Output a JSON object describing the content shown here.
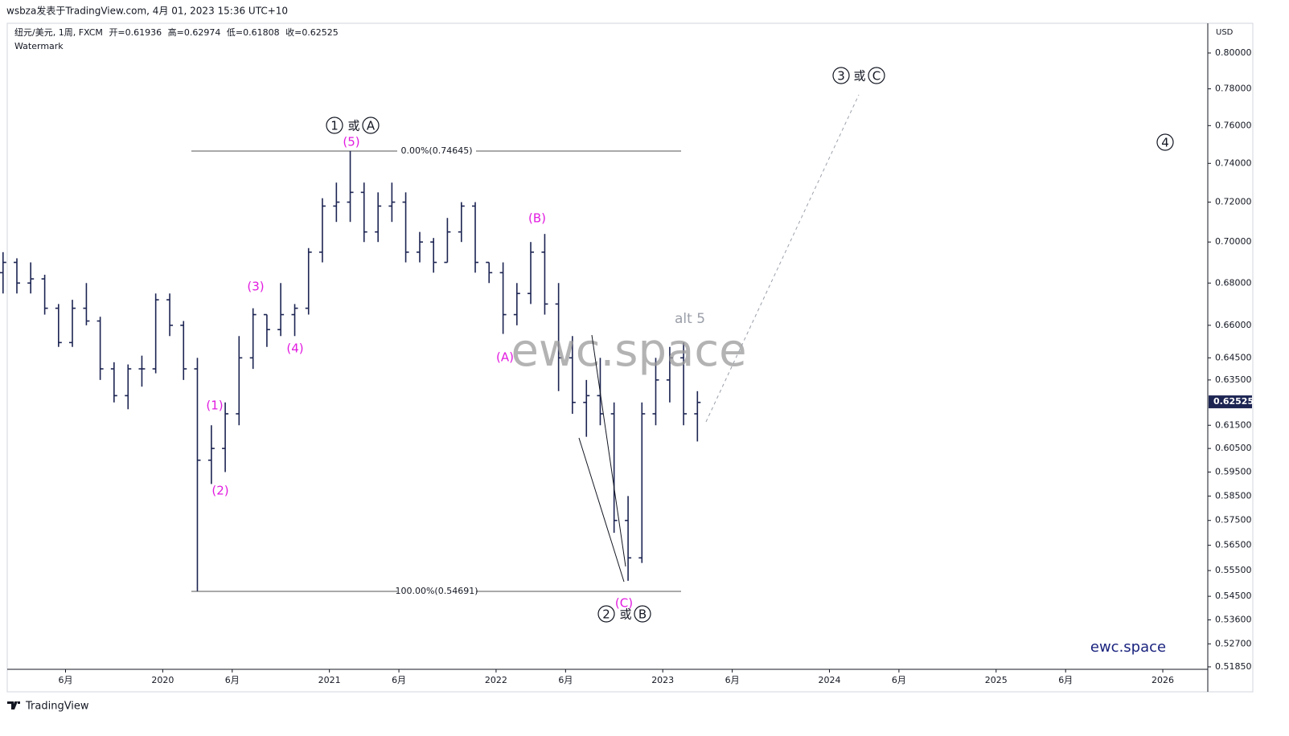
{
  "header": {
    "author": "wsbza发表于TradingView.com, 4月 01, 2023 15:36 UTC+10",
    "symbol": "纽元/美元, 1周, FXCM",
    "ohlc": [
      {
        "label": "开=",
        "value": "0.61936"
      },
      {
        "label": "高=",
        "value": "0.62974"
      },
      {
        "label": "低=",
        "value": "0.61808"
      },
      {
        "label": "收=",
        "value": "0.62525"
      }
    ],
    "watermark_label": "Watermark"
  },
  "chart_data": {
    "type": "ohlc",
    "color": "#1c2452",
    "log_scale": true,
    "grid": false,
    "x": [
      2019.042,
      2019.125,
      2019.208,
      2019.292,
      2019.375,
      2019.458,
      2019.542,
      2019.625,
      2019.708,
      2019.792,
      2019.875,
      2019.958,
      2020.042,
      2020.125,
      2020.208,
      2020.292,
      2020.375,
      2020.458,
      2020.542,
      2020.625,
      2020.708,
      2020.792,
      2020.875,
      2020.958,
      2021.042,
      2021.125,
      2021.208,
      2021.292,
      2021.375,
      2021.458,
      2021.542,
      2021.625,
      2021.708,
      2021.792,
      2021.875,
      2021.958,
      2022.042,
      2022.125,
      2022.208,
      2022.292,
      2022.375,
      2022.458,
      2022.542,
      2022.625,
      2022.708,
      2022.792,
      2022.875,
      2022.958,
      2023.042,
      2023.125,
      2023.208
    ],
    "open": [
      0.685,
      0.69,
      0.68,
      0.682,
      0.668,
      0.652,
      0.668,
      0.662,
      0.64,
      0.628,
      0.64,
      0.64,
      0.672,
      0.66,
      0.64,
      0.6,
      0.605,
      0.62,
      0.645,
      0.665,
      0.658,
      0.665,
      0.668,
      0.695,
      0.718,
      0.72,
      0.725,
      0.705,
      0.718,
      0.72,
      0.695,
      0.7,
      0.69,
      0.705,
      0.718,
      0.69,
      0.685,
      0.665,
      0.675,
      0.695,
      0.67,
      0.645,
      0.625,
      0.628,
      0.62,
      0.575,
      0.56,
      0.62,
      0.635,
      0.645,
      0.62
    ],
    "high": [
      0.695,
      0.692,
      0.69,
      0.684,
      0.67,
      0.672,
      0.68,
      0.664,
      0.643,
      0.642,
      0.646,
      0.675,
      0.675,
      0.662,
      0.645,
      0.615,
      0.625,
      0.655,
      0.668,
      0.665,
      0.68,
      0.67,
      0.697,
      0.722,
      0.73,
      0.7465,
      0.73,
      0.725,
      0.73,
      0.725,
      0.705,
      0.702,
      0.712,
      0.72,
      0.72,
      0.69,
      0.69,
      0.68,
      0.7,
      0.704,
      0.68,
      0.655,
      0.635,
      0.645,
      0.625,
      0.585,
      0.625,
      0.645,
      0.65,
      0.652,
      0.63
    ],
    "low": [
      0.675,
      0.675,
      0.675,
      0.665,
      0.65,
      0.65,
      0.66,
      0.635,
      0.625,
      0.622,
      0.632,
      0.638,
      0.655,
      0.635,
      0.547,
      0.59,
      0.595,
      0.615,
      0.64,
      0.65,
      0.655,
      0.655,
      0.665,
      0.69,
      0.71,
      0.71,
      0.7,
      0.7,
      0.71,
      0.69,
      0.69,
      0.685,
      0.69,
      0.7,
      0.685,
      0.68,
      0.656,
      0.66,
      0.67,
      0.665,
      0.63,
      0.62,
      0.61,
      0.615,
      0.57,
      0.551,
      0.558,
      0.615,
      0.625,
      0.615,
      0.608
    ],
    "close": [
      0.69,
      0.68,
      0.682,
      0.668,
      0.652,
      0.668,
      0.662,
      0.64,
      0.628,
      0.64,
      0.64,
      0.672,
      0.66,
      0.64,
      0.6,
      0.605,
      0.62,
      0.645,
      0.665,
      0.658,
      0.665,
      0.668,
      0.695,
      0.718,
      0.72,
      0.725,
      0.705,
      0.718,
      0.72,
      0.695,
      0.7,
      0.69,
      0.705,
      0.718,
      0.69,
      0.685,
      0.665,
      0.675,
      0.695,
      0.67,
      0.645,
      0.625,
      0.628,
      0.62,
      0.575,
      0.56,
      0.62,
      0.635,
      0.645,
      0.62,
      0.625
    ],
    "ylim": [
      0.5176,
      0.8165
    ],
    "yticks": [
      {
        "value": 0.8,
        "label": "0.80000"
      },
      {
        "value": 0.78,
        "label": "0.78000"
      },
      {
        "value": 0.76,
        "label": "0.76000"
      },
      {
        "value": 0.74,
        "label": "0.74000"
      },
      {
        "value": 0.72,
        "label": "0.72000"
      },
      {
        "value": 0.7,
        "label": "0.70000"
      },
      {
        "value": 0.68,
        "label": "0.68000"
      },
      {
        "value": 0.66,
        "label": "0.66000"
      },
      {
        "value": 0.645,
        "label": "0.64500"
      },
      {
        "value": 0.635,
        "label": "0.63500"
      },
      {
        "value": 0.615,
        "label": "0.61500"
      },
      {
        "value": 0.605,
        "label": "0.60500"
      },
      {
        "value": 0.595,
        "label": "0.59500"
      },
      {
        "value": 0.585,
        "label": "0.58500"
      },
      {
        "value": 0.575,
        "label": "0.57500"
      },
      {
        "value": 0.565,
        "label": "0.56500"
      },
      {
        "value": 0.555,
        "label": "0.55500"
      },
      {
        "value": 0.545,
        "label": "0.54500"
      },
      {
        "value": 0.536,
        "label": "0.53600"
      },
      {
        "value": 0.527,
        "label": "0.52700"
      },
      {
        "value": 0.5185,
        "label": "0.51850"
      }
    ],
    "y_unit": "USD",
    "last_price": {
      "value": 0.62525,
      "label": "0.62525"
    },
    "xlim": [
      2019.072,
      2026.27
    ],
    "xticks": [
      {
        "value": 2019.417,
        "label": "6月"
      },
      2020,
      {
        "value": 2020.417,
        "label": "6月"
      },
      2021,
      {
        "value": 2021.417,
        "label": "6月"
      },
      2022,
      {
        "value": 2022.417,
        "label": "6月"
      },
      2023,
      {
        "value": 2023.417,
        "label": "6月"
      },
      2024,
      {
        "value": 2024.417,
        "label": "6月"
      },
      2025,
      {
        "value": 2025.417,
        "label": "6月"
      },
      2026
    ],
    "fib_levels": [
      {
        "value": 0.74645,
        "label": "0.00%(0.74645)"
      },
      {
        "value": 0.54691,
        "label": "100.00%(0.54691)"
      }
    ],
    "wave_labels": [
      "(1)",
      "(2)",
      "(3)",
      "(4)",
      "(5)",
      "(A)",
      "(B)",
      "(C)"
    ],
    "alt_label": "alt 5",
    "degree_labels": [
      {
        "wave": "1",
        "or": "或",
        "alt": "A"
      },
      {
        "wave": "2",
        "or": "或",
        "alt": "B"
      },
      {
        "wave": "3",
        "or": "或",
        "alt": "C"
      },
      {
        "wave": "4"
      }
    ]
  },
  "watermark": "ewc.space",
  "brand": "ewc.space",
  "footer": "TradingView"
}
